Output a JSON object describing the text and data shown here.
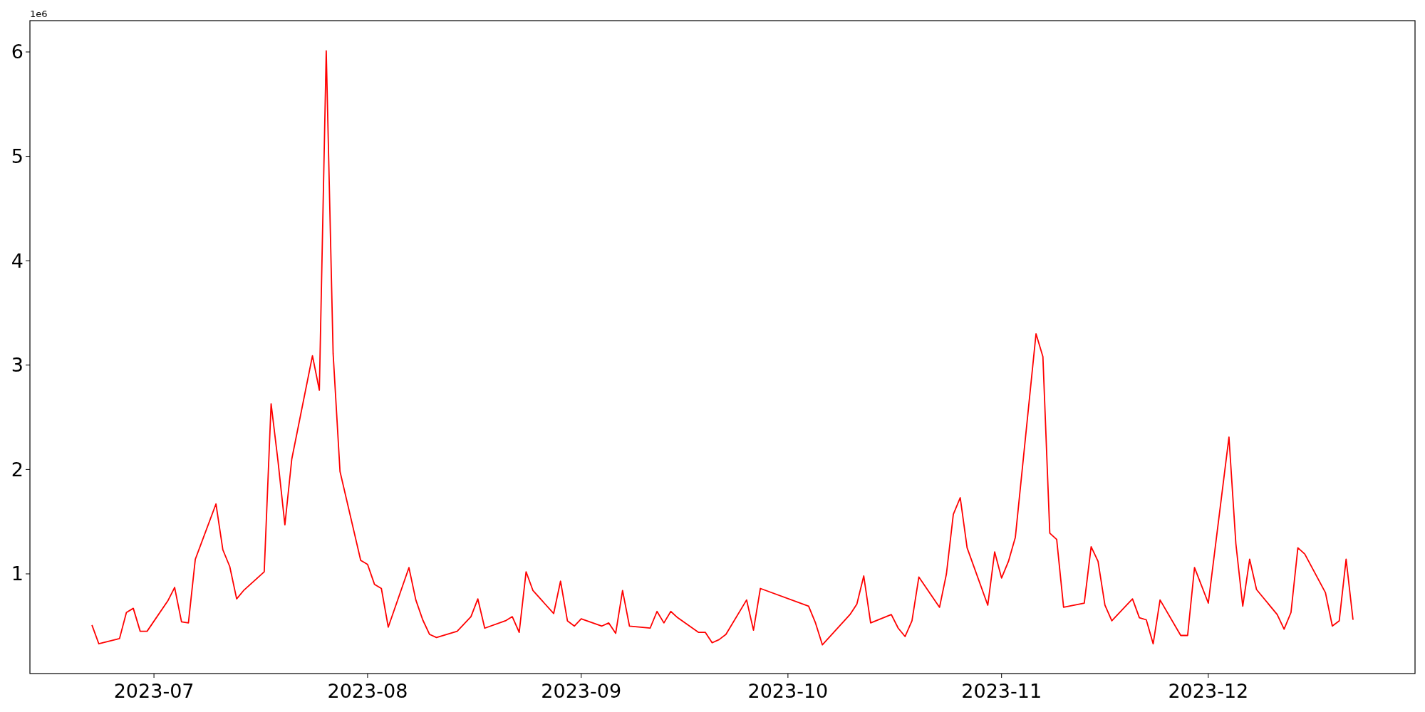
{
  "chart_data": {
    "type": "line",
    "x": [
      "2023-06-22",
      "2023-06-23",
      "2023-06-26",
      "2023-06-27",
      "2023-06-28",
      "2023-06-29",
      "2023-06-30",
      "2023-07-03",
      "2023-07-04",
      "2023-07-05",
      "2023-07-06",
      "2023-07-07",
      "2023-07-10",
      "2023-07-11",
      "2023-07-12",
      "2023-07-13",
      "2023-07-14",
      "2023-07-17",
      "2023-07-18",
      "2023-07-19",
      "2023-07-20",
      "2023-07-21",
      "2023-07-24",
      "2023-07-25",
      "2023-07-26",
      "2023-07-27",
      "2023-07-28",
      "2023-07-31",
      "2023-08-01",
      "2023-08-02",
      "2023-08-03",
      "2023-08-04",
      "2023-08-07",
      "2023-08-08",
      "2023-08-09",
      "2023-08-10",
      "2023-08-11",
      "2023-08-14",
      "2023-08-16",
      "2023-08-17",
      "2023-08-18",
      "2023-08-21",
      "2023-08-22",
      "2023-08-23",
      "2023-08-24",
      "2023-08-25",
      "2023-08-28",
      "2023-08-29",
      "2023-08-30",
      "2023-08-31",
      "2023-09-01",
      "2023-09-04",
      "2023-09-05",
      "2023-09-06",
      "2023-09-07",
      "2023-09-08",
      "2023-09-11",
      "2023-09-12",
      "2023-09-13",
      "2023-09-14",
      "2023-09-15",
      "2023-09-18",
      "2023-09-19",
      "2023-09-20",
      "2023-09-21",
      "2023-09-22",
      "2023-09-25",
      "2023-09-26",
      "2023-09-27",
      "2023-10-04",
      "2023-10-05",
      "2023-10-06",
      "2023-10-10",
      "2023-10-11",
      "2023-10-12",
      "2023-10-13",
      "2023-10-16",
      "2023-10-17",
      "2023-10-18",
      "2023-10-19",
      "2023-10-20",
      "2023-10-23",
      "2023-10-24",
      "2023-10-25",
      "2023-10-26",
      "2023-10-27",
      "2023-10-30",
      "2023-10-31",
      "2023-11-01",
      "2023-11-02",
      "2023-11-03",
      "2023-11-06",
      "2023-11-07",
      "2023-11-08",
      "2023-11-09",
      "2023-11-10",
      "2023-11-13",
      "2023-11-14",
      "2023-11-15",
      "2023-11-16",
      "2023-11-17",
      "2023-11-20",
      "2023-11-21",
      "2023-11-22",
      "2023-11-23",
      "2023-11-24",
      "2023-11-27",
      "2023-11-28",
      "2023-11-29",
      "2023-12-01",
      "2023-12-04",
      "2023-12-05",
      "2023-12-06",
      "2023-12-07",
      "2023-12-08",
      "2023-12-11",
      "2023-12-12",
      "2023-12-13",
      "2023-12-14",
      "2023-12-15",
      "2023-12-18",
      "2023-12-19",
      "2023-12-20",
      "2023-12-21",
      "2023-12-22"
    ],
    "series": [
      {
        "color": "#ff0000",
        "values": [
          0.51,
          0.33,
          0.38,
          0.63,
          0.67,
          0.45,
          0.45,
          0.74,
          0.87,
          0.54,
          0.53,
          1.14,
          1.67,
          1.23,
          1.07,
          0.76,
          0.84,
          1.02,
          2.63,
          2.08,
          1.47,
          2.1,
          3.09,
          2.76,
          6.01,
          3.11,
          1.98,
          1.13,
          1.09,
          0.9,
          0.86,
          0.49,
          1.06,
          0.75,
          0.56,
          0.42,
          0.39,
          0.45,
          0.59,
          0.76,
          0.48,
          0.55,
          0.59,
          0.44,
          1.02,
          0.84,
          0.62,
          0.93,
          0.55,
          0.5,
          0.57,
          0.5,
          0.53,
          0.43,
          0.84,
          0.5,
          0.48,
          0.64,
          0.53,
          0.64,
          0.58,
          0.44,
          0.44,
          0.34,
          0.37,
          0.42,
          0.75,
          0.46,
          0.86,
          0.69,
          0.53,
          0.32,
          0.61,
          0.71,
          0.98,
          0.53,
          0.61,
          0.48,
          0.4,
          0.55,
          0.97,
          0.68,
          1.0,
          1.57,
          1.73,
          1.25,
          0.7,
          1.21,
          0.96,
          1.12,
          1.35,
          3.3,
          3.08,
          1.39,
          1.33,
          0.68,
          0.72,
          1.26,
          1.12,
          0.7,
          0.55,
          0.76,
          0.58,
          0.56,
          0.33,
          0.75,
          0.41,
          0.41,
          1.06,
          0.72,
          2.31,
          1.29,
          0.69,
          1.14,
          0.85,
          0.61,
          0.47,
          0.63,
          1.25,
          1.19,
          0.82,
          0.5,
          0.55,
          1.14,
          0.56
        ]
      }
    ],
    "xlim": [
      "2023-06-13",
      "2023-12-31"
    ],
    "xticks": [
      "2023-07",
      "2023-08",
      "2023-09",
      "2023-10",
      "2023-11",
      "2023-12"
    ],
    "ylim": [
      0.045,
      6.3
    ],
    "yticks": [
      1,
      2,
      3,
      4,
      5,
      6
    ],
    "annotations": [
      "1e6"
    ]
  }
}
